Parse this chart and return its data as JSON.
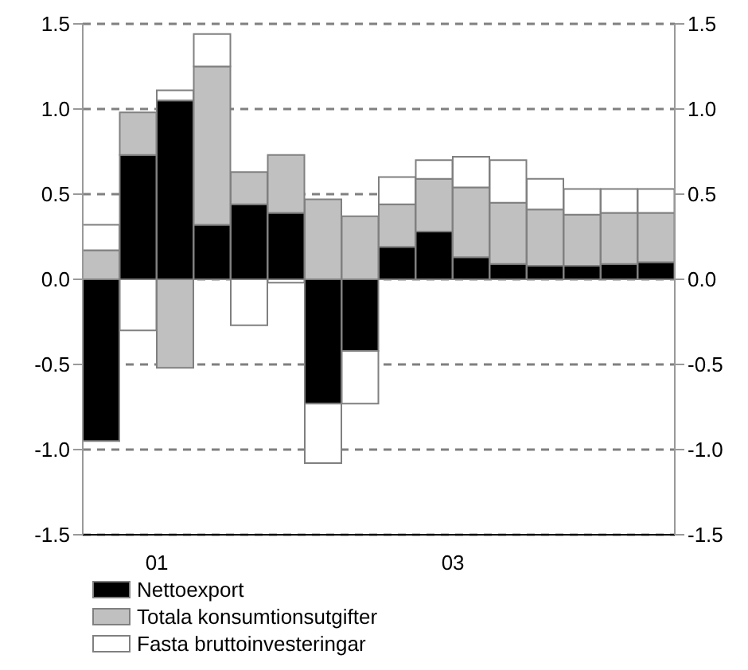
{
  "chart_data": {
    "type": "bar",
    "stacked": true,
    "categories": [
      null,
      "01",
      null,
      null,
      null,
      null,
      null,
      null,
      null,
      "03",
      null,
      null,
      null,
      null,
      null,
      null
    ],
    "series": [
      {
        "name": "Nettoexport",
        "color": "#000000",
        "values": [
          -0.95,
          0.73,
          1.05,
          0.32,
          0.44,
          0.39,
          -0.73,
          -0.42,
          0.19,
          0.28,
          0.13,
          0.09,
          0.08,
          0.08,
          0.09,
          0.1
        ]
      },
      {
        "name": "Totala konsumtionsutgifter",
        "color": "#c0c0c0",
        "values": [
          0.17,
          0.25,
          -0.52,
          0.93,
          0.19,
          0.34,
          0.47,
          0.37,
          0.25,
          0.31,
          0.41,
          0.36,
          0.33,
          0.3,
          0.3,
          0.29
        ]
      },
      {
        "name": "Fasta bruttoinvesteringar",
        "color": "#ffffff",
        "values": [
          0.15,
          -0.3,
          0.06,
          0.19,
          -0.27,
          -0.02,
          -0.35,
          -0.31,
          0.16,
          0.11,
          0.18,
          0.25,
          0.18,
          0.15,
          0.14,
          0.14
        ]
      }
    ],
    "ylim": [
      -1.5,
      1.5
    ],
    "yticks": [
      -1.5,
      {
        "value": -1,
        "label": "-1.0"
      },
      -0.5,
      {
        "value": 0,
        "label": "0.0"
      },
      0.5,
      {
        "value": 1,
        "label": "1.0"
      },
      1.5
    ],
    "y2lim": [
      -1.5,
      1.5
    ],
    "y2ticks": [
      -1.5,
      {
        "value": -1,
        "label": "-1.0"
      },
      -0.5,
      {
        "value": 0,
        "label": "0.0"
      },
      0.5,
      {
        "value": 1,
        "label": "1.0"
      },
      1.5
    ],
    "grid": "y",
    "legend": "bottom"
  }
}
